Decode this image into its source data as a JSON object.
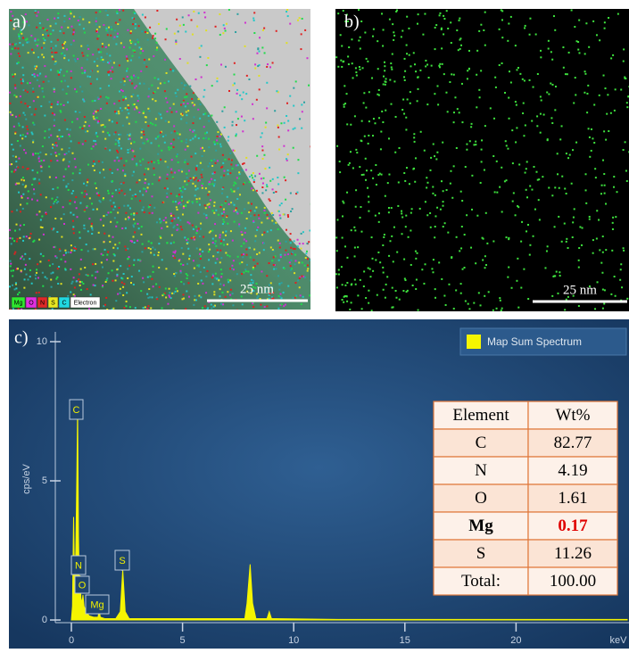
{
  "panel_a": {
    "label": "a)",
    "scale_bar": "25 nm",
    "legend": [
      "Mg",
      "O",
      "N",
      "S",
      "C",
      "Electron"
    ]
  },
  "panel_b": {
    "label": "b)",
    "scale_bar": "25 nm"
  },
  "chart_data": {
    "type": "area",
    "panel_label": "c)",
    "ylabel": "cps/eV",
    "xlabel": "keV",
    "x": [
      0,
      0.05,
      0.1,
      0.15,
      0.2,
      0.25,
      0.28,
      0.32,
      0.36,
      0.39,
      0.43,
      0.48,
      0.52,
      0.57,
      0.65,
      0.8,
      1.0,
      1.2,
      1.25,
      1.3,
      1.5,
      2.0,
      2.2,
      2.31,
      2.42,
      2.6,
      3.0,
      5.0,
      7.8,
      7.9,
      8.04,
      8.15,
      8.3,
      8.8,
      8.9,
      9.0,
      9.2,
      12,
      20,
      25
    ],
    "series": [
      {
        "name": "Map Sum Spectrum",
        "color": "#f5f500",
        "values": [
          0,
          0.5,
          3.7,
          1.0,
          2.5,
          5.5,
          7.7,
          3.0,
          1.2,
          1.6,
          0.8,
          0.6,
          0.9,
          0.5,
          0.3,
          0.15,
          0.1,
          0.1,
          0.35,
          0.1,
          0.05,
          0.05,
          0.3,
          1.8,
          0.3,
          0.05,
          0.05,
          0.05,
          0.05,
          0.6,
          2.0,
          0.6,
          0.05,
          0.05,
          0.3,
          0.05,
          0.05,
          0.02,
          0.02,
          0.02
        ]
      }
    ],
    "xlim": [
      0,
      25
    ],
    "ylim": [
      0,
      10
    ],
    "xticks": [
      0,
      5,
      10,
      15,
      20
    ],
    "yticks": [
      0,
      5,
      10
    ],
    "peak_labels": [
      "C",
      "N",
      "O",
      "Mg",
      "S"
    ]
  },
  "table": {
    "header": [
      "Element",
      "Wt%"
    ],
    "rows": [
      [
        "C",
        "82.77"
      ],
      [
        "N",
        "4.19"
      ],
      [
        "O",
        "1.61"
      ],
      [
        "Mg",
        "0.17"
      ],
      [
        "S",
        "11.26"
      ],
      [
        "Total:",
        "100.00"
      ]
    ]
  }
}
